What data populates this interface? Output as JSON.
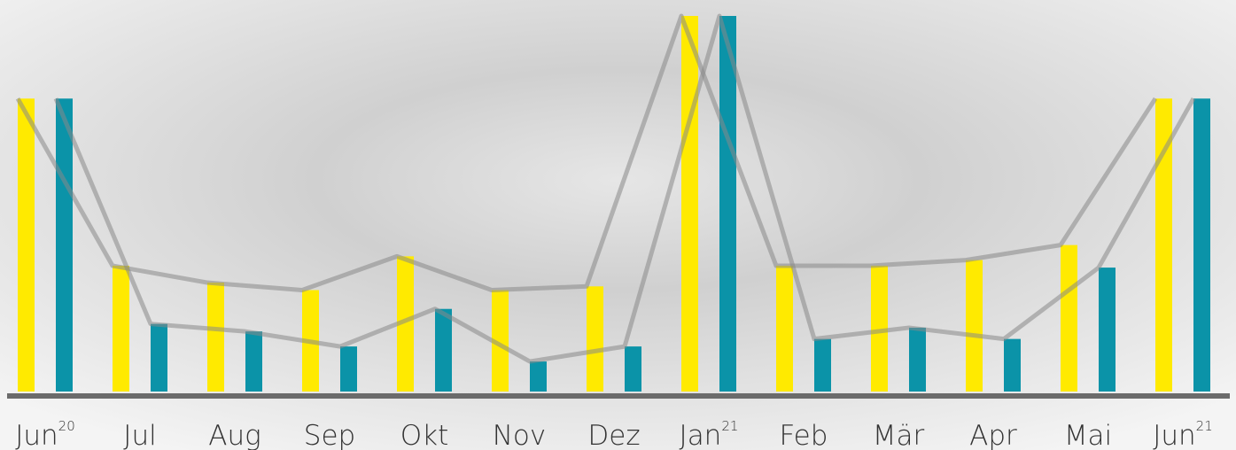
{
  "chart_data": {
    "type": "bar",
    "categories": [
      "Jun",
      "Jul",
      "Aug",
      "Sep",
      "Okt",
      "Nov",
      "Dez",
      "Jan",
      "Feb",
      "Mär",
      "Apr",
      "Mai",
      "Jun"
    ],
    "category_superscripts": [
      "20",
      null,
      null,
      null,
      null,
      null,
      null,
      "21",
      null,
      null,
      null,
      null,
      "21"
    ],
    "series": [
      {
        "color": "#ffea00",
        "values": [
          78,
          33.5,
          29,
          27,
          36,
          27,
          28,
          100,
          33.5,
          33.5,
          35,
          39,
          78
        ]
      },
      {
        "color": "#0b93a8",
        "values": [
          78,
          18,
          16,
          12,
          22,
          8,
          12,
          100,
          14,
          17,
          14,
          33,
          78
        ]
      }
    ],
    "ylim": [
      0,
      100
    ]
  }
}
